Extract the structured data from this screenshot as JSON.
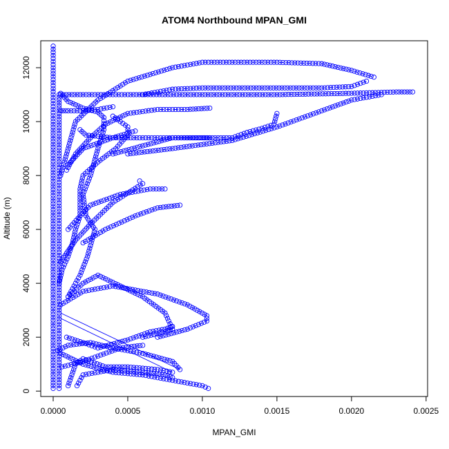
{
  "chart_data": {
    "type": "scatter",
    "title": "ATOM4 Northbound MPAN_GMI",
    "xlabel": "MPAN_GMI",
    "ylabel": "Altitude (m)",
    "xlim": [
      -8.33e-05,
      0.00251
    ],
    "ylim": [
      -200,
      13000
    ],
    "xticks": [
      {
        "value": 0.0,
        "label": "0.0000"
      },
      {
        "value": 0.0005,
        "label": "0.0005"
      },
      {
        "value": 0.001,
        "label": "0.0010"
      },
      {
        "value": 0.0015,
        "label": "0.0015"
      },
      {
        "value": 0.002,
        "label": "0.0020"
      },
      {
        "value": 0.0025,
        "label": "0.0025"
      }
    ],
    "yticks": [
      {
        "value": 0,
        "label": "0"
      },
      {
        "value": 2000,
        "label": "2000"
      },
      {
        "value": 4000,
        "label": "4000"
      },
      {
        "value": 6000,
        "label": "6000"
      },
      {
        "value": 8000,
        "label": "8000"
      },
      {
        "value": 10000,
        "label": "10000"
      },
      {
        "value": 12000,
        "label": "12000"
      }
    ],
    "grid": false,
    "marker": "open-circle",
    "color": "#0000ff",
    "series": [
      {
        "points": [
          [
            0.0,
            100
          ],
          [
            0.0,
            2000
          ],
          [
            0.0,
            4000
          ],
          [
            0.0,
            6000
          ],
          [
            0.0,
            8000
          ],
          [
            0.0,
            10000
          ],
          [
            0.0,
            11000
          ],
          [
            0.0,
            12000
          ],
          [
            0.0,
            12800
          ]
        ]
      },
      {
        "points": [
          [
            4e-05,
            100
          ],
          [
            4e-05,
            3000
          ],
          [
            4e-05,
            6000
          ],
          [
            4e-05,
            8400
          ],
          [
            4e-05,
            10400
          ],
          [
            4e-05,
            11000
          ]
        ]
      },
      {
        "points": [
          [
            5e-05,
            11000
          ],
          [
            0.0002,
            11000
          ],
          [
            0.0005,
            11000
          ],
          [
            0.001,
            11000
          ],
          [
            0.0015,
            11000
          ],
          [
            0.002,
            11050
          ],
          [
            0.0023,
            11100
          ],
          [
            0.00241,
            11100
          ]
        ]
      },
      {
        "points": [
          [
            5e-05,
            10400
          ],
          [
            0.0001,
            10400
          ],
          [
            0.0002,
            10400
          ],
          [
            0.0003,
            10450
          ],
          [
            0.0004,
            10550
          ]
        ]
      },
      {
        "points": [
          [
            5e-05,
            11050
          ],
          [
            0.0001,
            10750
          ],
          [
            0.0002,
            10500
          ],
          [
            0.0003,
            10350
          ],
          [
            0.00034,
            10150
          ],
          [
            0.00034,
            9700
          ],
          [
            0.0003,
            9000
          ],
          [
            0.00025,
            8000
          ],
          [
            0.0002,
            7300
          ],
          [
            0.00022,
            6500
          ],
          [
            0.00028,
            6000
          ],
          [
            0.00023,
            5000
          ],
          [
            0.00018,
            4300
          ],
          [
            0.0001,
            3500
          ]
        ]
      },
      {
        "points": [
          [
            0.00018,
            9700
          ],
          [
            0.00022,
            9500
          ],
          [
            0.0004,
            9400
          ],
          [
            0.0006,
            9400
          ],
          [
            0.0008,
            9400
          ],
          [
            0.001,
            9400
          ],
          [
            0.00105,
            9400
          ]
        ]
      },
      {
        "points": [
          [
            0.0004,
            10200
          ],
          [
            0.00045,
            10000
          ],
          [
            0.0005,
            9800
          ],
          [
            0.0005,
            9500
          ],
          [
            0.00042,
            9000
          ],
          [
            0.0003,
            8500
          ],
          [
            0.0002,
            8000
          ],
          [
            0.00018,
            7500
          ],
          [
            0.00018,
            7000
          ],
          [
            0.00018,
            6500
          ],
          [
            0.00015,
            6000
          ],
          [
            0.00013,
            5500
          ],
          [
            0.0001,
            5000
          ],
          [
            6e-05,
            4500
          ],
          [
            4e-05,
            4000
          ]
        ]
      },
      {
        "points": [
          [
            9e-05,
            8200
          ],
          [
            0.00015,
            8800
          ],
          [
            0.00025,
            9400
          ],
          [
            0.00035,
            9900
          ],
          [
            0.0005,
            10300
          ],
          [
            0.0007,
            10450
          ],
          [
            0.0009,
            10450
          ],
          [
            0.00105,
            10500
          ]
        ]
      },
      {
        "points": [
          [
            0.0001,
            8400
          ],
          [
            0.0002,
            9000
          ],
          [
            0.0004,
            9400
          ],
          [
            0.00055,
            9650
          ]
        ]
      },
      {
        "points": [
          [
            5e-05,
            8000
          ],
          [
            0.0001,
            9000
          ],
          [
            0.00015,
            10000
          ],
          [
            0.0003,
            10800
          ],
          [
            0.0005,
            11500
          ],
          [
            0.0008,
            12000
          ],
          [
            0.001,
            12200
          ],
          [
            0.0012,
            12200
          ],
          [
            0.0015,
            12200
          ],
          [
            0.0018,
            12150
          ],
          [
            0.002,
            11900
          ],
          [
            0.00215,
            11650
          ]
        ]
      },
      {
        "points": [
          [
            0.0004,
            8800
          ],
          [
            0.0006,
            9100
          ],
          [
            0.0008,
            9400
          ],
          [
            0.0012,
            9400
          ],
          [
            0.0013,
            9600
          ],
          [
            0.0014,
            9750
          ],
          [
            0.00148,
            9900
          ],
          [
            0.0015,
            10300
          ]
        ]
      },
      {
        "points": [
          [
            0.0005,
            8800
          ],
          [
            0.0008,
            9000
          ],
          [
            0.0012,
            9300
          ],
          [
            0.0015,
            9800
          ],
          [
            0.0018,
            10400
          ],
          [
            0.002,
            10800
          ],
          [
            0.0022,
            11000
          ]
        ]
      },
      {
        "points": [
          [
            0.0006,
            11000
          ],
          [
            0.0008,
            11200
          ],
          [
            0.001,
            11250
          ],
          [
            0.0014,
            11250
          ],
          [
            0.0018,
            11250
          ],
          [
            0.002,
            11300
          ],
          [
            0.0021,
            11500
          ]
        ]
      },
      {
        "points": [
          [
            0.0001,
            6000
          ],
          [
            0.00018,
            6500
          ],
          [
            0.00025,
            6900
          ],
          [
            0.00045,
            7300
          ],
          [
            0.00065,
            7500
          ],
          [
            0.00075,
            7500
          ]
        ]
      },
      {
        "points": [
          [
            0.0002,
            5500
          ],
          [
            0.00035,
            6000
          ],
          [
            0.00055,
            6500
          ],
          [
            0.0007,
            6800
          ],
          [
            0.00085,
            6900
          ]
        ]
      },
      {
        "points": [
          [
            5e-05,
            4800
          ],
          [
            0.0001,
            5200
          ],
          [
            0.00015,
            5600
          ],
          [
            0.00025,
            6200
          ],
          [
            0.0004,
            7000
          ],
          [
            0.0006,
            7700
          ],
          [
            0.00058,
            7800
          ]
        ]
      },
      {
        "points": [
          [
            5e-05,
            3200
          ],
          [
            0.0002,
            3700
          ],
          [
            0.0004,
            3900
          ],
          [
            0.0007,
            3600
          ],
          [
            0.0009,
            3200
          ],
          [
            0.00103,
            2800
          ],
          [
            0.00103,
            2600
          ],
          [
            0.0009,
            2300
          ],
          [
            0.0007,
            2000
          ]
        ]
      },
      {
        "points": [
          [
            0.0001,
            3500
          ],
          [
            0.0002,
            4000
          ],
          [
            0.0003,
            4300
          ],
          [
            0.00045,
            3900
          ],
          [
            0.0006,
            3500
          ],
          [
            0.00075,
            2900
          ],
          [
            0.0008,
            2300
          ],
          [
            0.00075,
            2200
          ],
          [
            0.0006,
            2000
          ]
        ]
      },
      {
        "points": [
          [
            9e-05,
            2000
          ],
          [
            0.0002,
            1800
          ],
          [
            0.0003,
            1600
          ],
          [
            0.0005,
            1900
          ],
          [
            0.00065,
            2200
          ],
          [
            0.00075,
            2300
          ],
          [
            0.0008,
            2400
          ]
        ]
      },
      {
        "points": [
          [
            3e-05,
            1500
          ],
          [
            0.0001,
            1700
          ],
          [
            0.00025,
            1800
          ],
          [
            0.0004,
            1600
          ],
          [
            0.0006,
            1400
          ],
          [
            0.0008,
            1100
          ],
          [
            0.00085,
            800
          ]
        ]
      },
      {
        "points": [
          [
            0.0001,
            200
          ],
          [
            0.00015,
            1000
          ],
          [
            0.0002,
            1200
          ],
          [
            0.00035,
            900
          ],
          [
            0.0005,
            900
          ],
          [
            0.0007,
            800
          ],
          [
            0.0008,
            700
          ]
        ]
      },
      {
        "points": [
          [
            0.00016,
            200
          ],
          [
            0.0002,
            600
          ],
          [
            0.0004,
            800
          ],
          [
            0.0006,
            700
          ],
          [
            0.00075,
            600
          ],
          [
            0.0008,
            500
          ]
        ]
      },
      {
        "points": [
          [
            5e-05,
            1400
          ],
          [
            0.0002,
            1000
          ],
          [
            0.0004,
            700
          ],
          [
            0.0006,
            600
          ],
          [
            0.0008,
            400
          ],
          [
            0.001,
            200
          ],
          [
            0.00104,
            100
          ]
        ]
      },
      {
        "points": [
          [
            6e-05,
            900
          ],
          [
            0.0002,
            1100
          ],
          [
            0.0003,
            1300
          ],
          [
            0.00045,
            1600
          ],
          [
            0.0006,
            1700
          ]
        ]
      }
    ],
    "lines": [
      {
        "points": [
          [
            5e-05,
            2900
          ],
          [
            0.00085,
            800
          ]
        ]
      },
      {
        "points": [
          [
            5e-05,
            2700
          ],
          [
            0.0008,
            700
          ]
        ]
      },
      {
        "points": [
          [
            5e-05,
            11050
          ],
          [
            0.0001,
            10750
          ]
        ]
      }
    ]
  }
}
